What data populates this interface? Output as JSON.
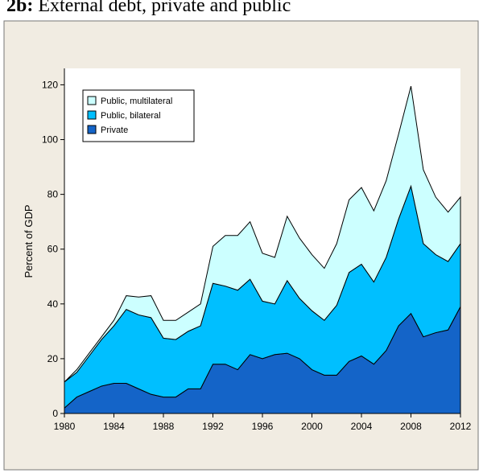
{
  "chart_data": {
    "type": "stacked_area",
    "title_label": "2b:",
    "title": "External debt, private and public",
    "y_label": "Percent of GDP",
    "x": [
      1980,
      1981,
      1982,
      1983,
      1984,
      1985,
      1986,
      1987,
      1988,
      1989,
      1990,
      1991,
      1992,
      1993,
      1994,
      1995,
      1996,
      1997,
      1998,
      1999,
      2000,
      2001,
      2002,
      2003,
      2004,
      2005,
      2006,
      2007,
      2008,
      2009,
      2010,
      2011,
      2012
    ],
    "series": [
      {
        "name": "Private",
        "color": "#1464c8",
        "values": [
          2,
          6,
          8,
          10,
          11,
          11,
          9,
          7,
          6,
          6,
          9,
          9,
          18,
          18,
          16,
          21.5,
          20,
          21.5,
          22,
          20,
          16,
          14,
          14,
          19,
          21,
          18,
          23,
          32,
          36.5,
          28,
          29.5,
          30.5,
          39
        ]
      },
      {
        "name": "Public, bilateral",
        "color": "#00bfff",
        "values": [
          9.5,
          9,
          13,
          17,
          21,
          27,
          27,
          28,
          21.5,
          21,
          21,
          23,
          29.5,
          28.5,
          29,
          27.5,
          21,
          18.5,
          26.5,
          22,
          21.5,
          20,
          25.5,
          32.5,
          33.5,
          30,
          34,
          39,
          46.5,
          34,
          28.5,
          25,
          23
        ]
      },
      {
        "name": "Public, multilateral",
        "color": "#ccffff",
        "values": [
          0,
          1,
          1,
          1,
          2,
          5,
          6.5,
          8,
          6.5,
          7,
          7,
          8,
          13.5,
          18.5,
          20,
          21,
          17.5,
          17,
          23.5,
          22,
          20.5,
          19,
          22.5,
          26.5,
          28,
          26,
          28,
          31,
          36.5,
          27,
          21,
          18,
          17
        ]
      }
    ],
    "xlim": [
      1980,
      2012
    ],
    "xticks": [
      1980,
      1984,
      1988,
      1992,
      1996,
      2000,
      2004,
      2008,
      2012
    ],
    "ylim": [
      0,
      126
    ],
    "yticks": [
      0,
      20,
      40,
      60,
      80,
      100,
      120
    ],
    "legend": "top-left"
  }
}
